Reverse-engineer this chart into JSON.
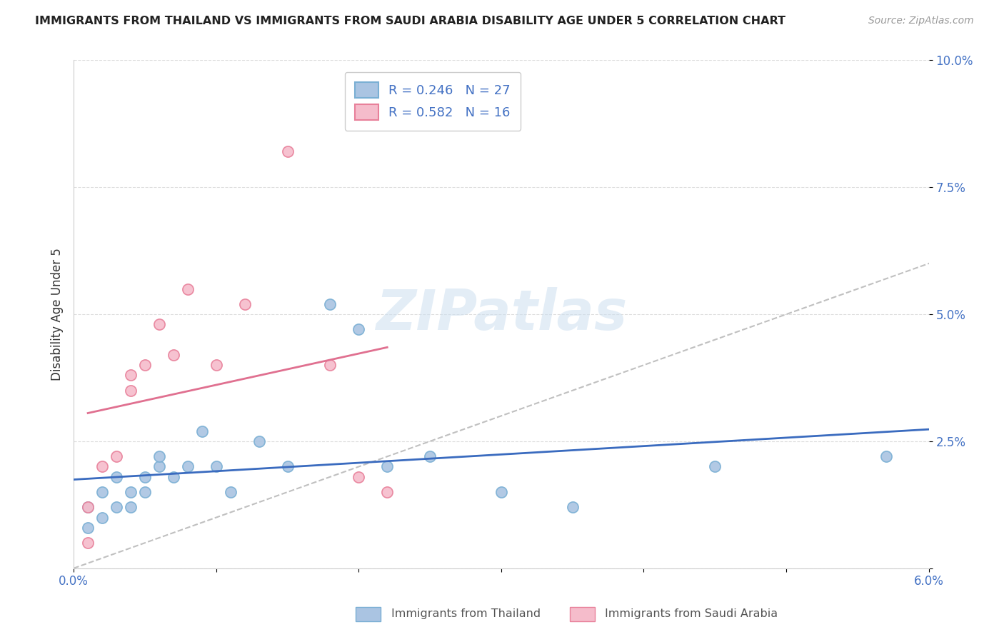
{
  "title": "IMMIGRANTS FROM THAILAND VS IMMIGRANTS FROM SAUDI ARABIA DISABILITY AGE UNDER 5 CORRELATION CHART",
  "source": "Source: ZipAtlas.com",
  "ylabel": "Disability Age Under 5",
  "xlim": [
    0,
    0.06
  ],
  "ylim": [
    0,
    0.1
  ],
  "xticks": [
    0.0,
    0.01,
    0.02,
    0.03,
    0.04,
    0.05,
    0.06
  ],
  "xticklabels": [
    "0.0%",
    "",
    "",
    "",
    "",
    "",
    "6.0%"
  ],
  "yticks": [
    0.0,
    0.025,
    0.05,
    0.075,
    0.1
  ],
  "yticklabels": [
    "",
    "2.5%",
    "5.0%",
    "7.5%",
    "10.0%"
  ],
  "thailand_color": "#aac4e2",
  "thailand_edge": "#7aafd4",
  "saudi_color": "#f5bccb",
  "saudi_edge": "#e8809a",
  "trend_blue": "#3a6bbf",
  "trend_pink": "#e07090",
  "R_thailand": 0.246,
  "N_thailand": 27,
  "R_saudi": 0.582,
  "N_saudi": 16,
  "legend_label_thailand": "Immigrants from Thailand",
  "legend_label_saudi": "Immigrants from Saudi Arabia",
  "watermark": "ZIPatlas",
  "thailand_x": [
    0.001,
    0.001,
    0.002,
    0.002,
    0.003,
    0.003,
    0.004,
    0.004,
    0.005,
    0.005,
    0.006,
    0.006,
    0.007,
    0.008,
    0.009,
    0.01,
    0.011,
    0.013,
    0.015,
    0.018,
    0.02,
    0.022,
    0.025,
    0.03,
    0.035,
    0.045,
    0.057
  ],
  "thailand_y": [
    0.008,
    0.012,
    0.01,
    0.015,
    0.012,
    0.018,
    0.015,
    0.012,
    0.018,
    0.015,
    0.02,
    0.022,
    0.018,
    0.02,
    0.027,
    0.02,
    0.015,
    0.025,
    0.02,
    0.052,
    0.047,
    0.02,
    0.022,
    0.015,
    0.012,
    0.02,
    0.022
  ],
  "saudi_x": [
    0.001,
    0.001,
    0.002,
    0.003,
    0.004,
    0.004,
    0.005,
    0.006,
    0.007,
    0.008,
    0.01,
    0.012,
    0.015,
    0.018,
    0.02,
    0.022
  ],
  "saudi_y": [
    0.005,
    0.012,
    0.02,
    0.022,
    0.035,
    0.038,
    0.04,
    0.048,
    0.042,
    0.055,
    0.04,
    0.052,
    0.082,
    0.04,
    0.018,
    0.015
  ]
}
